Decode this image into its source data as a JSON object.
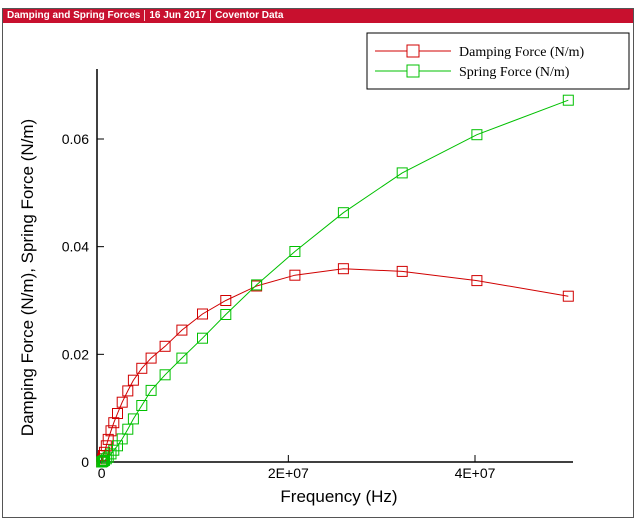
{
  "header": {
    "items": [
      "Damping and Spring Forces",
      "16 Jun 2017",
      "Coventor Data"
    ]
  },
  "colors": {
    "header_bg": "#c8102e",
    "damping": "#d00000",
    "spring": "#00c000"
  },
  "chart_data": {
    "type": "line",
    "title": "",
    "xlabel": "Frequency (Hz)",
    "ylabel": "Damping Force (N/m), Spring Force (N/m)",
    "xlim": [
      -500000,
      50500000
    ],
    "ylim": [
      0,
      0.073
    ],
    "x_ticks": [
      0,
      20000000,
      40000000
    ],
    "x_tick_labels": [
      "0",
      "2E+07",
      "4E+07"
    ],
    "y_ticks": [
      0,
      0.02,
      0.04,
      0.06
    ],
    "y_tick_labels": [
      "0",
      "0.02",
      "0.04",
      "0.06"
    ],
    "legend_position": "top-right",
    "x": [
      0,
      100000,
      200000,
      300000,
      500000,
      700000,
      1000000,
      1300000,
      1700000,
      2200000,
      2800000,
      3400000,
      4300000,
      5300000,
      6800000,
      8600000,
      10800000,
      13300000,
      16600000,
      20700000,
      25900000,
      32200000,
      40200000,
      50000000
    ],
    "series": [
      {
        "name": "Damping Force (N/m)",
        "marker": "square",
        "values": [
          0.0,
          0.0006,
          0.0012,
          0.0018,
          0.003,
          0.0042,
          0.0058,
          0.0073,
          0.009,
          0.0111,
          0.0132,
          0.0152,
          0.0174,
          0.0193,
          0.0215,
          0.0245,
          0.0275,
          0.03,
          0.0327,
          0.0347,
          0.0359,
          0.0354,
          0.0337,
          0.0308
        ]
      },
      {
        "name": "Spring Force (N/m)",
        "marker": "square",
        "values": [
          0.0,
          0.0001,
          0.0002,
          0.0003,
          0.0006,
          0.0009,
          0.0015,
          0.0022,
          0.003,
          0.0043,
          0.0061,
          0.008,
          0.0105,
          0.0133,
          0.0162,
          0.0193,
          0.023,
          0.0274,
          0.0329,
          0.0391,
          0.0463,
          0.0537,
          0.0608,
          0.0672
        ]
      }
    ]
  }
}
